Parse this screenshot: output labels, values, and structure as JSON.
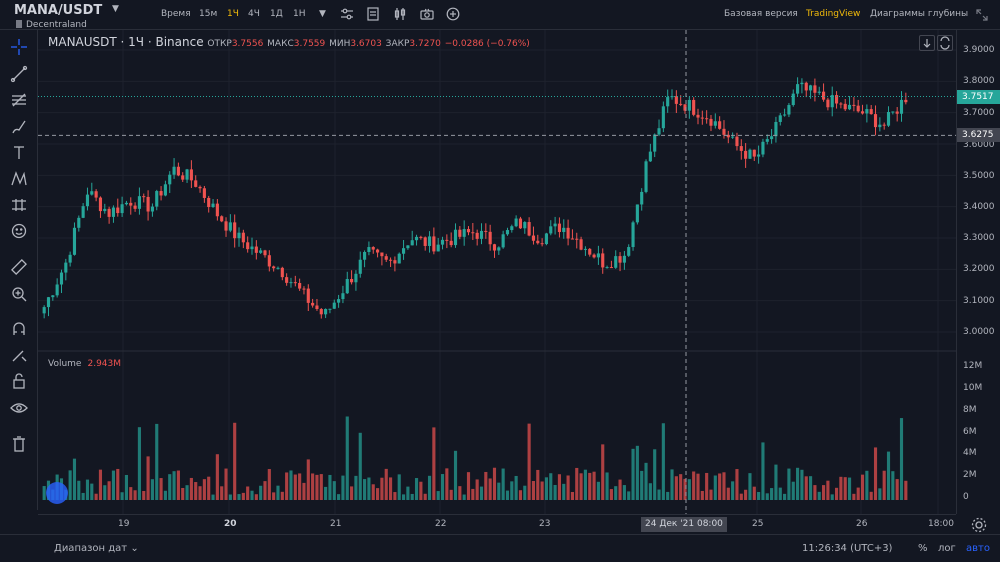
{
  "header": {
    "symbol": "MANA/USDT",
    "exchange_name": "Decentraland",
    "timeframes": [
      "Время",
      "15м",
      "1Ч",
      "4Ч",
      "1Д",
      "1Н"
    ],
    "active_timeframe": "1Ч",
    "right_links": [
      "Базовая версия",
      "TradingView",
      "Диаграммы глубины"
    ],
    "active_link": "TradingView"
  },
  "legend": {
    "title": "MANAUSDT · 1Ч · Binance",
    "open_label": "ОТКР",
    "open": "3.7556",
    "high_label": "МАКС",
    "high": "3.7559",
    "low_label": "МИН",
    "low": "3.6703",
    "close_label": "ЗАКР",
    "close": "3.7270",
    "change": "−0.0286 (−0.76%)"
  },
  "volume_legend": {
    "label": "Volume",
    "value": "2.943M"
  },
  "price_axis": {
    "ticks": [
      "3.9000",
      "3.8000",
      "3.7000",
      "3.6000",
      "3.5000",
      "3.4000",
      "3.3000",
      "3.2000",
      "3.1000",
      "3.0000"
    ],
    "last_price": "3.7517",
    "crosshair_price": "3.6275",
    "last_color": "#26a69a",
    "crosshair_color": "#434651"
  },
  "volume_axis": {
    "ticks": [
      "12M",
      "10M",
      "8M",
      "6M",
      "4M",
      "2M",
      "0"
    ]
  },
  "time_axis": {
    "ticks": [
      "19",
      "20",
      "21",
      "22",
      "23",
      "25",
      "26",
      "18:00"
    ],
    "bold_ticks": [
      "20"
    ],
    "crosshair_label": "24 Дек '21   08:00"
  },
  "footer": {
    "date_range": "Диапазон дат",
    "clock": "11:26:34 (UTC+3)",
    "percent": "%",
    "log": "лог",
    "auto": "авто"
  },
  "chart_data": {
    "type": "candlestick",
    "up_color": "#26a69a",
    "down_color": "#ef5350",
    "ohlc_close_sample": [
      3.08,
      3.22,
      3.45,
      3.38,
      3.42,
      3.4,
      3.52,
      3.48,
      3.38,
      3.3,
      3.25,
      3.2,
      3.12,
      3.05,
      3.15,
      3.25,
      3.22,
      3.3,
      3.28,
      3.3,
      3.32,
      3.28,
      3.35,
      3.3,
      3.34,
      3.28,
      3.22,
      3.25,
      3.55,
      3.75,
      3.72,
      3.68,
      3.6,
      3.55,
      3.65,
      3.78,
      3.75,
      3.72,
      3.7,
      3.66,
      3.75
    ],
    "volume_scale_max": "12M"
  }
}
